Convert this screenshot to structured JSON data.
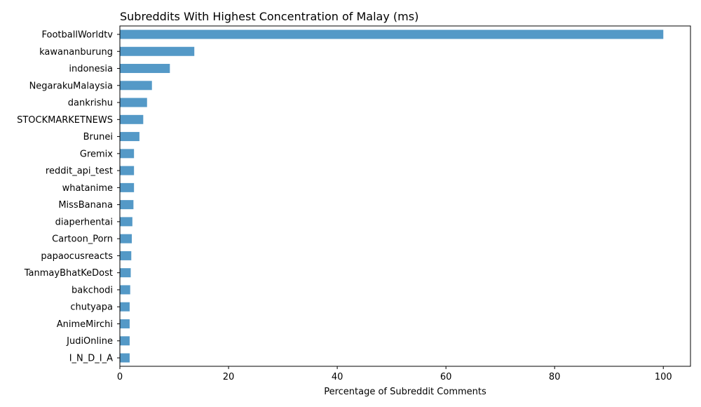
{
  "chart_data": {
    "type": "bar",
    "orientation": "horizontal",
    "title": "Subreddits With Highest Concentration of Malay (ms)",
    "xlabel": "Percentage of Subreddit Comments",
    "ylabel": "",
    "xlim": [
      0,
      105
    ],
    "xticks": [
      0,
      20,
      40,
      60,
      80,
      100
    ],
    "grid": false,
    "bar_color": "#5499c7",
    "categories": [
      "FootballWorldtv",
      "kawananburung",
      "indonesia",
      "NegarakuMalaysia",
      "dankrishu",
      "STOCKMARKETNEWS",
      "Brunei",
      "Gremix",
      "reddit_api_test",
      "whatanime",
      "MissBanana",
      "diaperhentai",
      "Cartoon_Porn",
      "papaocusreacts",
      "TanmayBhatKeDost",
      "bakchodi",
      "chutyapa",
      "AnimeMirchi",
      "JudiOnline",
      "I_N_D_I_A"
    ],
    "values": [
      100,
      13.7,
      9.2,
      5.9,
      5.0,
      4.3,
      3.6,
      2.6,
      2.6,
      2.6,
      2.5,
      2.3,
      2.2,
      2.1,
      2.0,
      1.9,
      1.8,
      1.8,
      1.8,
      1.8
    ]
  }
}
